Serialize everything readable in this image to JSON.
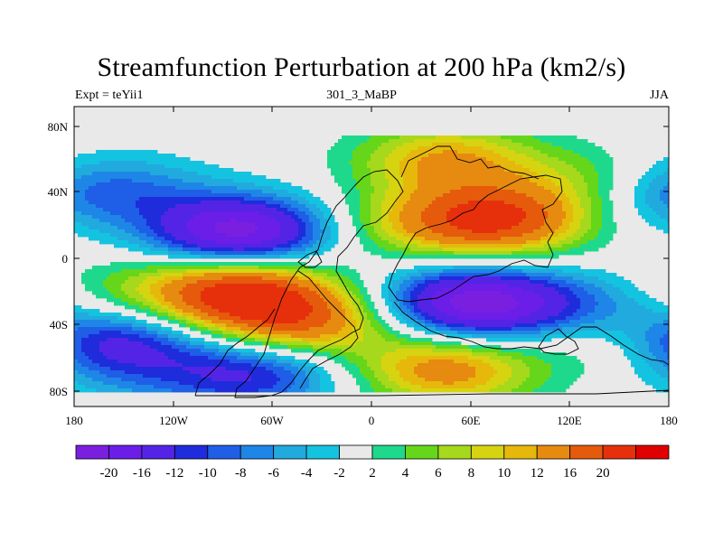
{
  "title": "Streamfunction Perturbation at 200 hPa (km2/s)",
  "subtitle_left": "Expt = teYii1",
  "subtitle_center": "301_3_MaBP",
  "subtitle_right": "JJA",
  "lon_ticks": [
    "180",
    "120W",
    "60W",
    "0",
    "60E",
    "120E",
    "180"
  ],
  "lat_ticks": [
    "80N",
    "40N",
    "0",
    "40S",
    "80S"
  ],
  "colorbar": {
    "colors": [
      "#7a1fe0",
      "#6a1ee8",
      "#5424e6",
      "#1e2cdc",
      "#1f5ee6",
      "#1e86e6",
      "#21aade",
      "#14c3e0",
      "#e9e9e9",
      "#1ed98c",
      "#66d61a",
      "#a6d81c",
      "#d6d410",
      "#e6b80c",
      "#e68a10",
      "#e65a0c",
      "#e6300c",
      "#e00000"
    ],
    "labels": [
      "-20",
      "-16",
      "-12",
      "-10",
      "-8",
      "-6",
      "-4",
      "-2",
      "2",
      "4",
      "6",
      "8",
      "10",
      "12",
      "16",
      "20"
    ]
  },
  "chart_data": {
    "type": "heatmap",
    "title": "Streamfunction Perturbation at 200 hPa (km2/s)",
    "xlim": [
      -180,
      180
    ],
    "ylim": [
      -90,
      90
    ],
    "xlabel": "",
    "ylabel": "",
    "blobs": [
      {
        "lon": -80,
        "lat": 15,
        "amplitude": -22
      },
      {
        "lon": -150,
        "lat": 40,
        "amplitude": -6
      },
      {
        "lon": 172,
        "lat": 38,
        "amplitude": -5
      },
      {
        "lon": -158,
        "lat": -52,
        "amplitude": -14
      },
      {
        "lon": -70,
        "lat": -70,
        "amplitude": -12
      },
      {
        "lon": 62,
        "lat": -28,
        "amplitude": -22
      },
      {
        "lon": 128,
        "lat": -30,
        "amplitude": -6
      },
      {
        "lon": -130,
        "lat": -75,
        "amplitude": -3
      },
      {
        "lon": -80,
        "lat": -22,
        "amplitude": 22
      },
      {
        "lon": -40,
        "lat": -40,
        "amplitude": 14
      },
      {
        "lon": -150,
        "lat": -20,
        "amplitude": 4
      },
      {
        "lon": 45,
        "lat": 58,
        "amplitude": 12
      },
      {
        "lon": 75,
        "lat": 22,
        "amplitude": 20
      },
      {
        "lon": 20,
        "lat": 20,
        "amplitude": 6
      },
      {
        "lon": 45,
        "lat": -68,
        "amplitude": 14
      },
      {
        "lon": 130,
        "lat": 45,
        "amplitude": 6
      },
      {
        "lon": 150,
        "lat": -52,
        "amplitude": 5
      }
    ]
  }
}
